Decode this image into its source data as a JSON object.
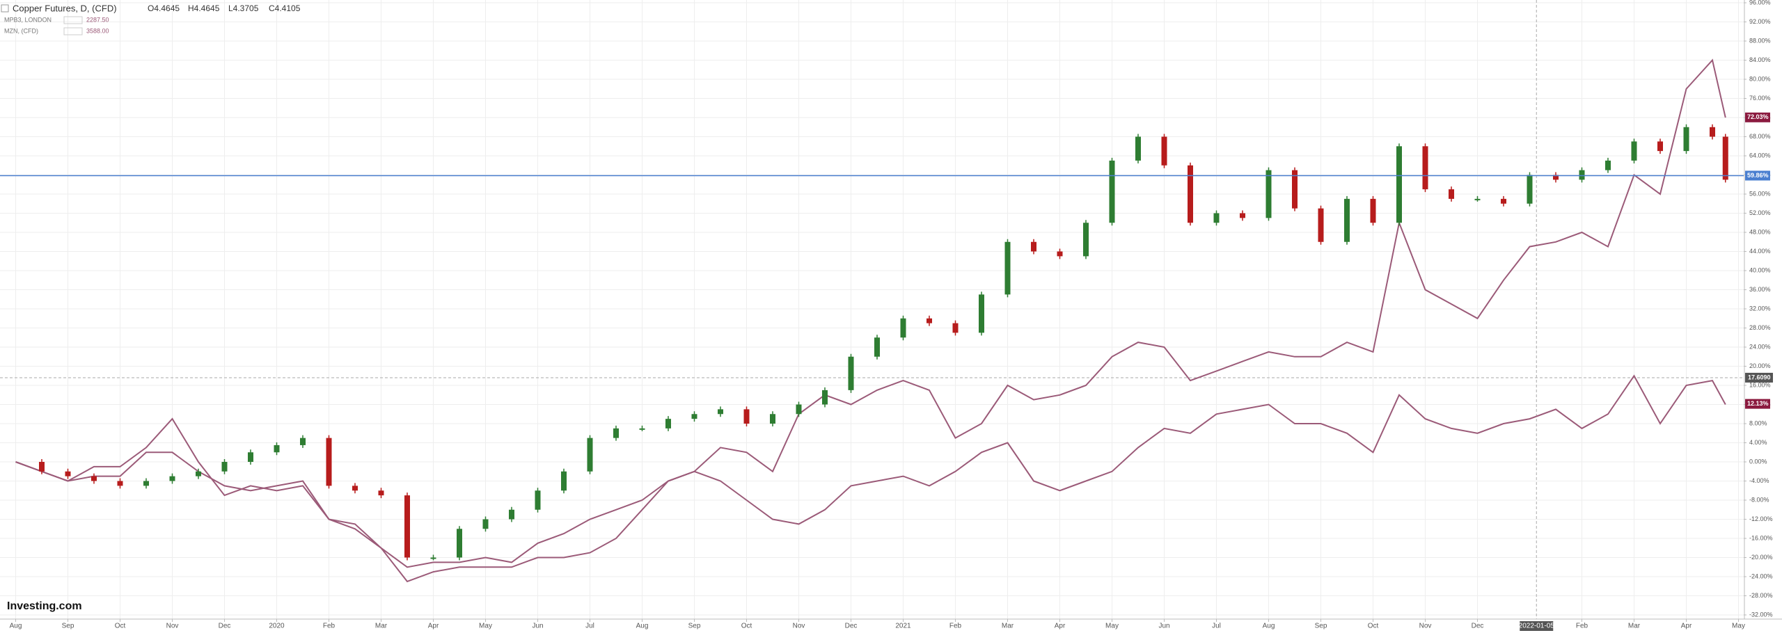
{
  "chart_data": {
    "type": "candle-line",
    "title": "Copper Futures, D, (CFD)",
    "ohlc": [
      {
        "value": 4.4645,
        "label": "O4.4645"
      },
      {
        "value": 4.4645,
        "label": "H4.4645"
      },
      {
        "value": 4.3705,
        "label": "L4.3705"
      },
      {
        "value": 4.4105,
        "label": "C4.4105"
      }
    ],
    "logo": "Investing.com",
    "x": [
      0,
      0.5,
      1,
      1.5,
      2,
      2.5,
      3,
      3.5,
      4,
      4.5,
      5,
      5.5,
      6,
      6.5,
      7,
      7.5,
      8,
      8.5,
      9,
      9.5,
      10,
      10.5,
      11,
      11.5,
      12,
      12.5,
      13,
      13.5,
      14,
      14.5,
      15,
      15.5,
      16,
      16.5,
      17,
      17.5,
      18,
      18.5,
      19,
      19.5,
      20,
      20.5,
      21,
      21.5,
      22,
      22.5,
      23,
      23.5,
      24,
      24.5,
      25,
      25.5,
      26,
      26.5,
      27,
      27.5,
      28,
      28.5,
      29,
      29.5,
      30,
      30.5,
      31,
      31.5,
      32,
      32.5,
      32.75
    ],
    "series": [
      {
        "name": "Copper Futures, D, (CFD)",
        "style": "candle",
        "up_color": "#2e7d32",
        "down_color": "#b71c1c",
        "values": [
          0,
          -2,
          -3,
          -4,
          -5,
          -4,
          -3,
          -2,
          0,
          2,
          3.5,
          5,
          -5,
          -6,
          -7,
          -20,
          -20,
          -14,
          -12,
          -10,
          -6,
          -2,
          5,
          7,
          7,
          9,
          10,
          11,
          8,
          10,
          12,
          15,
          22,
          26,
          30,
          29,
          27,
          35,
          46,
          44,
          43,
          50,
          63,
          68,
          62,
          50,
          52,
          51,
          61,
          53,
          46,
          55,
          50,
          66,
          57,
          55,
          55,
          54,
          60,
          59,
          61,
          63,
          67,
          65,
          70,
          68,
          59
        ]
      },
      {
        "name": "MPB3, LONDON",
        "style": "line",
        "color": "#9b5a78",
        "legend_value": {
          "value": 2287.5,
          "label": "2287.50"
        },
        "values": [
          0,
          -2,
          -4,
          -1,
          -1,
          3,
          9,
          0,
          -7,
          -5,
          -6,
          -5,
          -12,
          -13,
          -18,
          -22,
          -21,
          -21,
          -20,
          -21,
          -17,
          -15,
          -12,
          -10,
          -8,
          -4,
          -2,
          3,
          2,
          -2,
          10,
          14,
          12,
          15,
          17,
          15,
          5,
          8,
          16,
          13,
          14,
          16,
          22,
          25,
          24,
          17,
          19,
          21,
          23,
          22,
          22,
          25,
          23,
          50,
          36,
          33,
          30,
          38,
          45,
          46,
          48,
          45,
          60,
          56,
          78,
          84,
          72
        ]
      },
      {
        "name": "MZN, (CFD)",
        "style": "line",
        "color": "#9b5a78",
        "legend_value": {
          "value": 3588,
          "label": "3588.00"
        },
        "values": [
          0,
          -2,
          -4,
          -3,
          -3,
          2,
          2,
          -2,
          -5,
          -6,
          -5,
          -4,
          -12,
          -14,
          -18,
          -25,
          -23,
          -22,
          -22,
          -22,
          -20,
          -20,
          -19,
          -16,
          -10,
          -4,
          -2,
          -4,
          -8,
          -12,
          -13,
          -10,
          -5,
          -4,
          -3,
          -5,
          -2,
          2,
          4,
          -4,
          -6,
          -4,
          -2,
          3,
          7,
          6,
          10,
          11,
          12,
          8,
          8,
          6,
          2,
          14,
          9,
          7,
          6,
          8,
          9,
          11,
          7,
          10,
          18,
          8,
          16,
          17,
          12
        ]
      }
    ],
    "xlim": [
      -0.3,
      33.1
    ],
    "xticks": [
      {
        "value": 0,
        "label": "Aug"
      },
      {
        "value": 1,
        "label": "Sep"
      },
      {
        "value": 2,
        "label": "Oct"
      },
      {
        "value": 3,
        "label": "Nov"
      },
      {
        "value": 4,
        "label": "Dec"
      },
      {
        "value": 5,
        "label": "2020"
      },
      {
        "value": 6,
        "label": "Feb"
      },
      {
        "value": 7,
        "label": "Mar"
      },
      {
        "value": 8,
        "label": "Apr"
      },
      {
        "value": 9,
        "label": "May"
      },
      {
        "value": 10,
        "label": "Jun"
      },
      {
        "value": 11,
        "label": "Jul"
      },
      {
        "value": 12,
        "label": "Aug"
      },
      {
        "value": 13,
        "label": "Sep"
      },
      {
        "value": 14,
        "label": "Oct"
      },
      {
        "value": 15,
        "label": "Nov"
      },
      {
        "value": 16,
        "label": "Dec"
      },
      {
        "value": 17,
        "label": "2021"
      },
      {
        "value": 18,
        "label": "Feb"
      },
      {
        "value": 19,
        "label": "Mar"
      },
      {
        "value": 20,
        "label": "Apr"
      },
      {
        "value": 21,
        "label": "May"
      },
      {
        "value": 22,
        "label": "Jun"
      },
      {
        "value": 23,
        "label": "Jul"
      },
      {
        "value": 24,
        "label": "Aug"
      },
      {
        "value": 25,
        "label": "Sep"
      },
      {
        "value": 26,
        "label": "Oct"
      },
      {
        "value": 27,
        "label": "Nov"
      },
      {
        "value": 28,
        "label": "Dec"
      },
      {
        "value": 30,
        "label": "Feb"
      },
      {
        "value": 31,
        "label": "Mar"
      },
      {
        "value": 32,
        "label": "Apr"
      },
      {
        "value": 33,
        "label": "May"
      }
    ],
    "ylim": [
      -32,
      96
    ],
    "yticks": [
      {
        "value": 96,
        "label": "96.00%"
      },
      {
        "value": 92,
        "label": "92.00%"
      },
      {
        "value": 88,
        "label": "88.00%"
      },
      {
        "value": 84,
        "label": "84.00%"
      },
      {
        "value": 80,
        "label": "80.00%"
      },
      {
        "value": 76,
        "label": "76.00%"
      },
      {
        "value": 72,
        "label": "72.00%"
      },
      {
        "value": 68,
        "label": "68.00%"
      },
      {
        "value": 64,
        "label": "64.00%"
      },
      {
        "value": 60,
        "label": "60.00%"
      },
      {
        "value": 56,
        "label": "56.00%"
      },
      {
        "value": 52,
        "label": "52.00%"
      },
      {
        "value": 48,
        "label": "48.00%"
      },
      {
        "value": 44,
        "label": "44.00%"
      },
      {
        "value": 40,
        "label": "40.00%"
      },
      {
        "value": 36,
        "label": "36.00%"
      },
      {
        "value": 32,
        "label": "32.00%"
      },
      {
        "value": 28,
        "label": "28.00%"
      },
      {
        "value": 24,
        "label": "24.00%"
      },
      {
        "value": 20,
        "label": "20.00%"
      },
      {
        "value": 16,
        "label": "16.00%"
      },
      {
        "value": 12,
        "label": "12.00%"
      },
      {
        "value": 8,
        "label": "8.00%"
      },
      {
        "value": 4,
        "label": "4.00%"
      },
      {
        "value": 0,
        "label": "0.00%"
      },
      {
        "value": -4,
        "label": "-4.00%"
      },
      {
        "value": -8,
        "label": "-8.00%"
      },
      {
        "value": -12,
        "label": "-12.00%"
      },
      {
        "value": -16,
        "label": "-16.00%"
      },
      {
        "value": -20,
        "label": "-20.00%"
      },
      {
        "value": -24,
        "label": "-24.00%"
      },
      {
        "value": -28,
        "label": "-28.00%"
      },
      {
        "value": -32,
        "label": "-32.00%"
      }
    ],
    "grid": true,
    "price_markers": [
      {
        "value": 72.03,
        "label": "72.03%",
        "color": "#8b1a3f"
      },
      {
        "value": 59.86,
        "label": "59.86%",
        "color": "#4a7fd0",
        "line": true
      },
      {
        "value": 12.13,
        "label": "12.13%",
        "color": "#8b1a3f"
      }
    ],
    "crosshair": {
      "x": {
        "value": 29.13,
        "label": "2022-01-05"
      },
      "y": {
        "value": 17.609,
        "label": "17.6090"
      },
      "color": "#555"
    }
  }
}
